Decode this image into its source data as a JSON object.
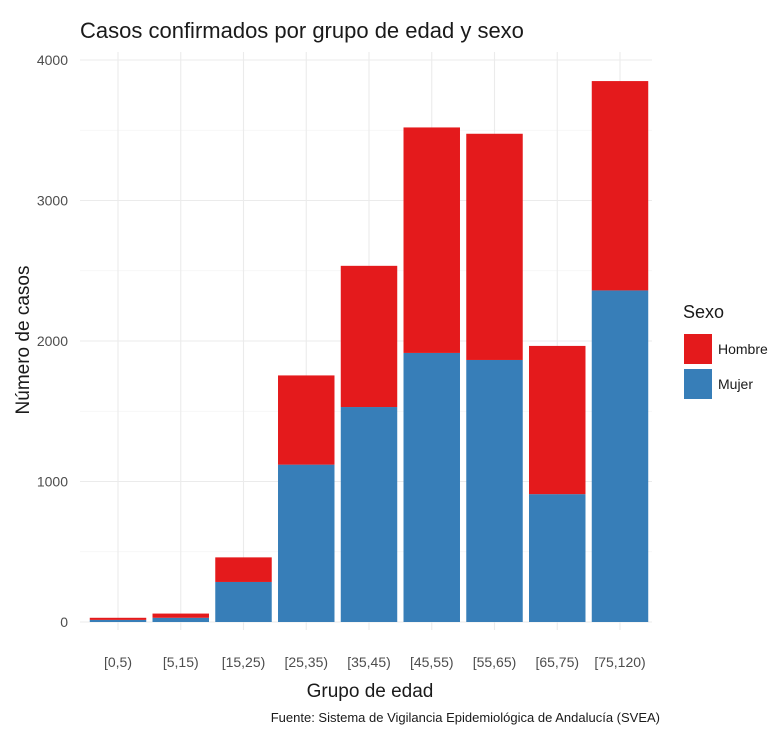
{
  "chart_data": {
    "type": "bar",
    "stacked": true,
    "title": "Casos confirmados por grupo de edad y sexo",
    "xlabel": "Grupo de edad",
    "ylabel": "Número de casos",
    "ylim": [
      0,
      4000
    ],
    "yticks": [
      "0",
      "1000",
      "2000",
      "3000",
      "4000"
    ],
    "categories": [
      "[0,5)",
      "[5,15)",
      "[15,25)",
      "[25,35)",
      "[35,45)",
      "[45,55)",
      "[55,65)",
      "[65,75)",
      "[75,120)"
    ],
    "series": [
      {
        "name": "Mujer",
        "color": "#377eb8",
        "values": [
          15,
          30,
          285,
          1120,
          1530,
          1915,
          1865,
          910,
          2360
        ]
      },
      {
        "name": "Hombre",
        "color": "#e41a1c",
        "values": [
          15,
          30,
          175,
          635,
          1005,
          1605,
          1610,
          1055,
          1490
        ]
      }
    ],
    "legend": {
      "title": "Sexo",
      "placement": "right",
      "entries": [
        {
          "label": "Hombre",
          "color": "#e41a1c"
        },
        {
          "label": "Mujer",
          "color": "#377eb8"
        }
      ]
    },
    "grid": true,
    "caption": "Fuente: Sistema de Vigilancia Epidemiológica de Andalucía (SVEA)"
  }
}
